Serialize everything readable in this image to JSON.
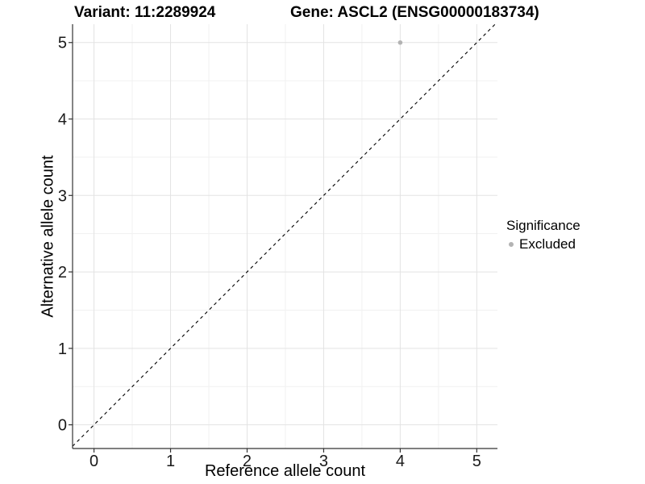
{
  "header": {
    "variant_title": "Variant: 11:2289924",
    "gene_title": "Gene: ASCL2 (ENSG00000183734)"
  },
  "chart_data": {
    "type": "scatter",
    "titles": {
      "left": "Variant: 11:2289924",
      "right": "Gene: ASCL2 (ENSG00000183734)"
    },
    "xlabel": "Reference allele count",
    "ylabel": "Alternative allele count",
    "xlim": [
      -0.28,
      5.27
    ],
    "ylim": [
      -0.31,
      5.24
    ],
    "xticks": [
      0,
      1,
      2,
      3,
      4,
      5
    ],
    "yticks": [
      0,
      1,
      2,
      3,
      4,
      5
    ],
    "grid": {
      "major": true,
      "minor": true,
      "minor_step": 0.5
    },
    "points": [
      {
        "x": 4,
        "y": 5,
        "series": "Excluded"
      }
    ],
    "point_radius": 2.8,
    "reference_line": {
      "slope": 1,
      "intercept": 0,
      "style": "dashed"
    },
    "legend": {
      "title": "Significance",
      "position": "right",
      "items": [
        {
          "label": "Excluded",
          "color": "#b3b3b3"
        }
      ]
    },
    "colors": {
      "point": "#b3b3b3",
      "grid_major": "#e3e3e3",
      "grid_minor": "#f1f1f1",
      "axis": "#333333",
      "tick_text": "#1a1a1a",
      "reference_line": "#000000"
    }
  }
}
